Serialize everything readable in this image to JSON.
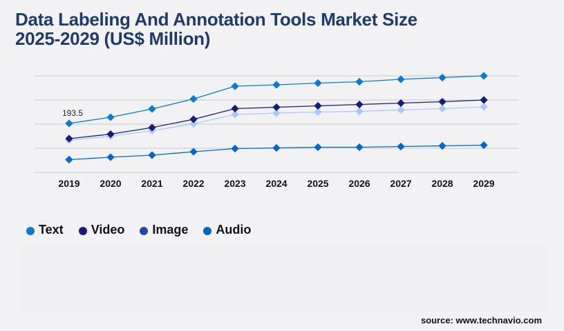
{
  "title_line1": "Data Labeling And Annotation Tools Market Size",
  "title_line2": "2025-2029 (US$ Million)",
  "source": "source: www.technavio.com",
  "chart_data": {
    "type": "line",
    "x": [
      "2019",
      "2020",
      "2021",
      "2022",
      "2023",
      "2024",
      "2025",
      "2026",
      "2027",
      "2028",
      "2029"
    ],
    "ylim": [
      0,
      381.6
    ],
    "grid": true,
    "y_axis_labels_shown": false,
    "legend_position": "bottom-left",
    "data_labels": [
      {
        "series": "Text",
        "x": "2019",
        "text": "193.5"
      }
    ],
    "series": [
      {
        "name": "Text",
        "color": "#0a7ad0",
        "line_color": "#0a7ad0",
        "values": [
          193.5,
          218.0,
          250.7,
          290.3,
          340.7,
          346.1,
          352.9,
          358.4,
          367.9,
          374.7,
          381.6
        ]
      },
      {
        "name": "Video",
        "color": "#1a1a7a",
        "line_color": "#1a1a7a",
        "values": [
          133.5,
          151.3,
          177.2,
          209.9,
          252.1,
          257.6,
          263.0,
          268.5,
          273.9,
          279.4,
          286.2
        ]
      },
      {
        "name": "Image",
        "color": "#1c4aa8",
        "line_color": "#a8c8ff",
        "values": [
          126.7,
          143.1,
          164.9,
          192.1,
          228.9,
          234.4,
          238.5,
          241.2,
          246.6,
          252.1,
          258.9
        ]
      },
      {
        "name": "Audio",
        "color": "#0066cc",
        "line_color": "#0066cc",
        "values": [
          50.4,
          60.0,
          68.1,
          81.8,
          94.0,
          96.8,
          99.5,
          99.5,
          102.2,
          104.9,
          107.7
        ]
      }
    ]
  }
}
